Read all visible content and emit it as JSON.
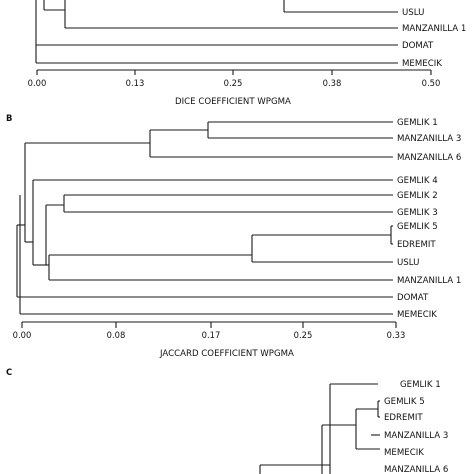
{
  "panels": [
    {
      "panel_label": "",
      "caption": "DICE COEFFICIENT WPGMA",
      "axis_ticks": [
        "0.00",
        "0.13",
        "0.25",
        "0.38",
        "0.50"
      ],
      "axis_range": [
        0,
        0.5
      ],
      "leaves": [
        "USLU",
        "MANZANILLA 1",
        "DOMAT",
        "MEMECIK"
      ]
    },
    {
      "panel_label": "B",
      "caption": "JACCARD COEFFICIENT WPGMA",
      "axis_ticks": [
        "0.00",
        "0.08",
        "0.17",
        "0.25",
        "0.33"
      ],
      "axis_range": [
        0,
        0.33
      ],
      "leaves": [
        "GEMLIK 1",
        "MANZANILLA 3",
        "MANZANILLA 6",
        "GEMLIK 4",
        "GEMLIK 2",
        "GEMLIK 3",
        "GEMLIK 5",
        "EDREMIT",
        "USLU",
        "MANZANILLA 1",
        "DOMAT",
        "MEMECIK"
      ]
    },
    {
      "panel_label": "C",
      "caption": "",
      "axis_ticks": [],
      "leaves": [
        "GEMLIK 1",
        "GEMLIK 5",
        "EDREMIT",
        "MANZANILLA 3",
        "MEMECIK",
        "MANZANILLA 6"
      ]
    }
  ]
}
